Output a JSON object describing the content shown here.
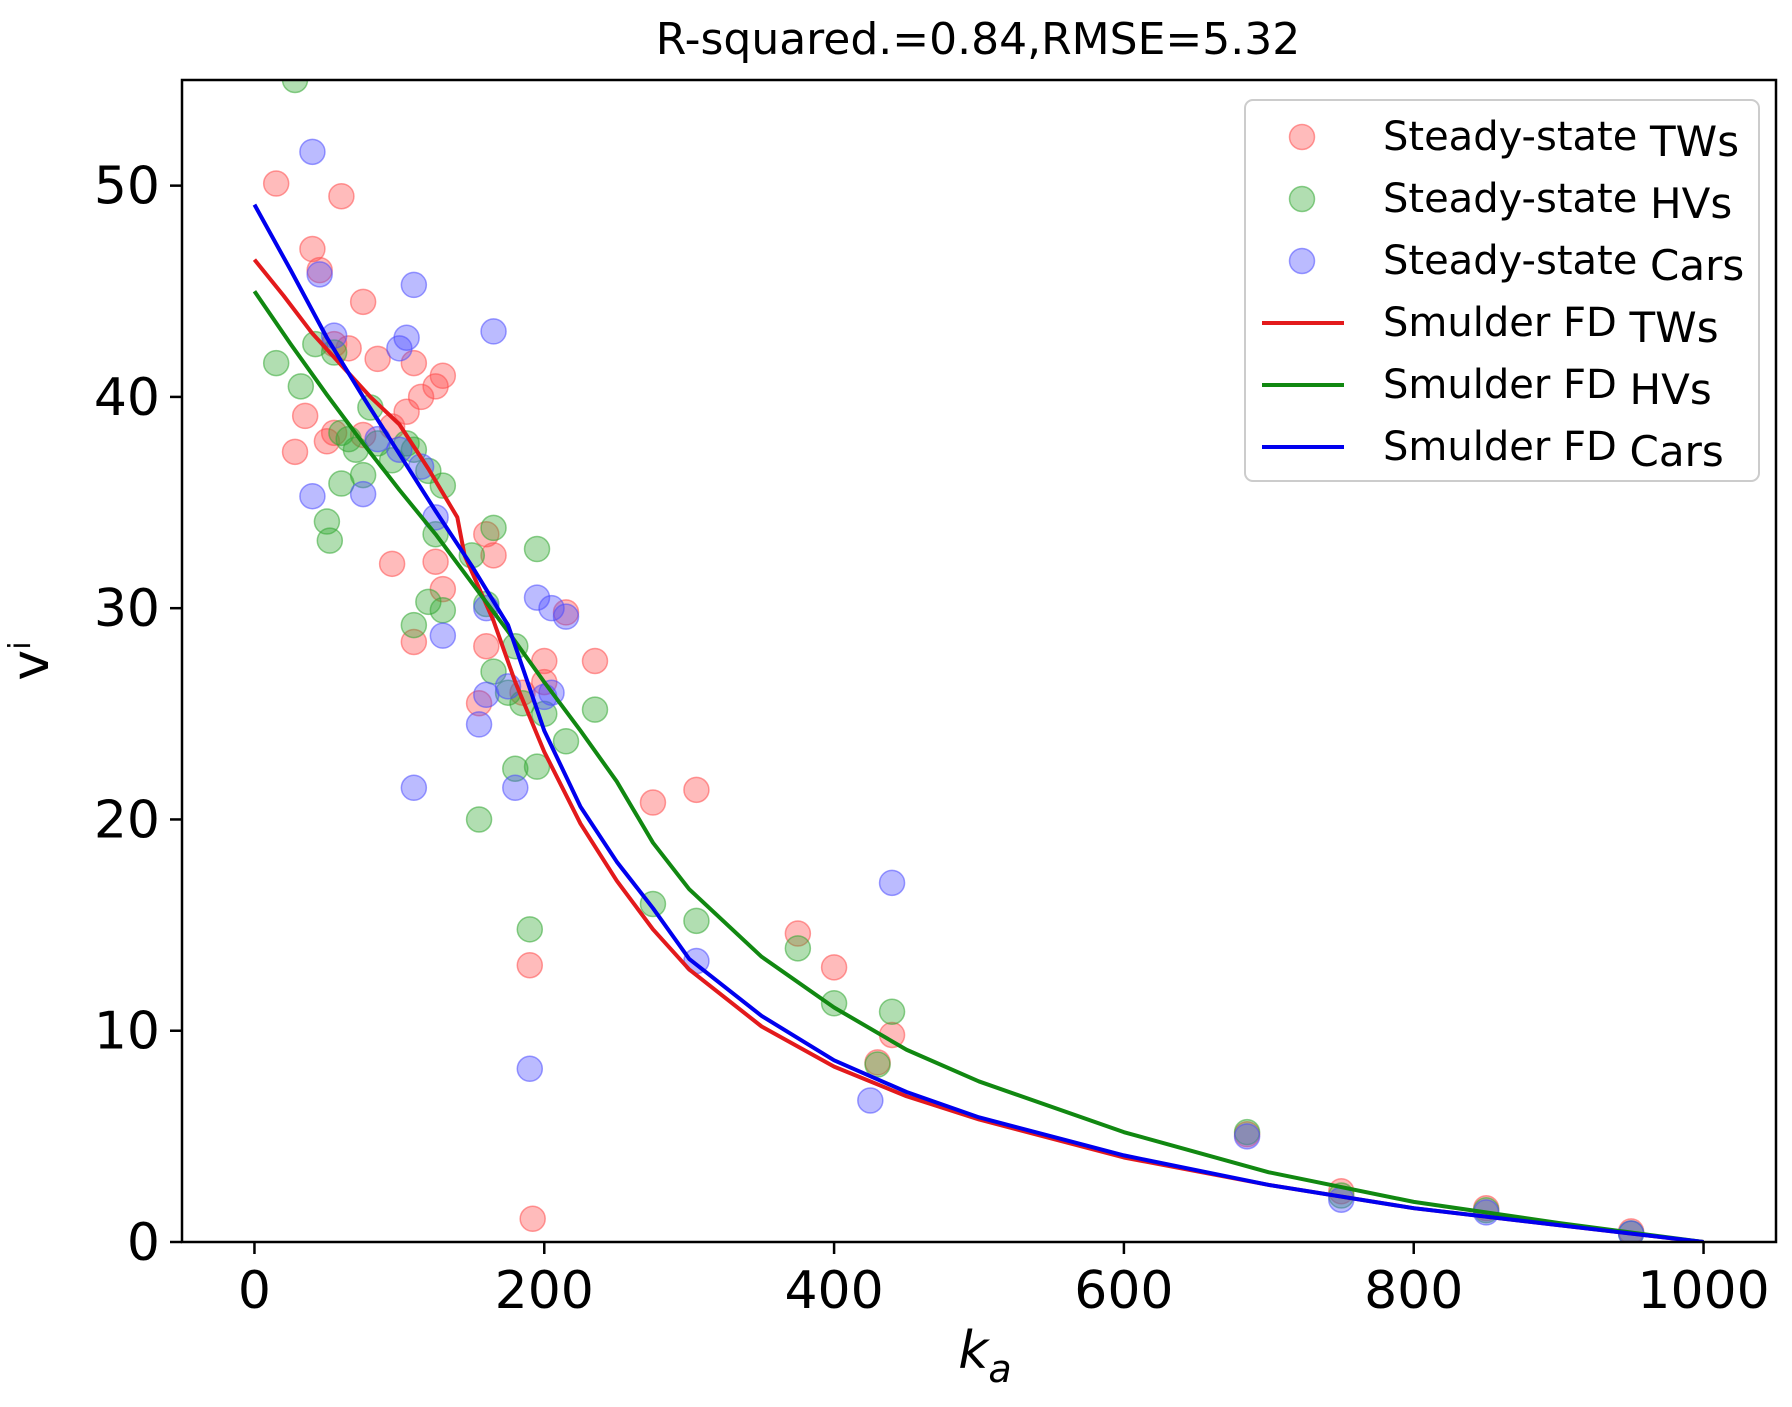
{
  "chart_data": {
    "type": "scatter",
    "title": "R-squared.=0.84,RMSE=5.32",
    "xlabel": "k",
    "xlabel_sub": "a",
    "ylabel": "v",
    "ylabel_sup": "i",
    "xlim": [
      -50,
      1050
    ],
    "ylim": [
      0,
      55
    ],
    "xticks": [
      0,
      200,
      400,
      600,
      800,
      1000
    ],
    "yticks": [
      0,
      10,
      20,
      30,
      40,
      50
    ],
    "legend_position": "upper-right",
    "scatter_series": [
      {
        "name": "Steady-state",
        "label_suffix": "TWs",
        "color": "#ff4d4d",
        "points": [
          [
            15,
            50.1
          ],
          [
            60,
            49.5
          ],
          [
            40,
            47
          ],
          [
            75,
            44.5
          ],
          [
            45,
            46
          ],
          [
            55,
            42.5
          ],
          [
            65,
            42.3
          ],
          [
            85,
            41.8
          ],
          [
            110,
            41.6
          ],
          [
            130,
            41
          ],
          [
            125,
            40.5
          ],
          [
            115,
            40
          ],
          [
            105,
            39.3
          ],
          [
            95,
            38.6
          ],
          [
            75,
            38.2
          ],
          [
            55,
            38.3
          ],
          [
            35,
            39.1
          ],
          [
            50,
            37.9
          ],
          [
            28,
            37.4
          ],
          [
            95,
            32.1
          ],
          [
            125,
            32.2
          ],
          [
            165,
            32.5
          ],
          [
            160,
            33.5
          ],
          [
            130,
            30.9
          ],
          [
            110,
            28.4
          ],
          [
            160,
            28.2
          ],
          [
            155,
            25.5
          ],
          [
            185,
            26
          ],
          [
            200,
            27.5
          ],
          [
            200,
            26.5
          ],
          [
            215,
            29.8
          ],
          [
            235,
            27.5
          ],
          [
            275,
            20.8
          ],
          [
            305,
            21.4
          ],
          [
            190,
            13.1
          ],
          [
            192,
            1.1
          ],
          [
            375,
            14.6
          ],
          [
            400,
            13
          ],
          [
            440,
            9.8
          ],
          [
            430,
            8.5
          ],
          [
            685,
            5.1
          ],
          [
            750,
            2.4
          ],
          [
            850,
            1.6
          ],
          [
            950,
            0.5
          ]
        ]
      },
      {
        "name": "Steady-state",
        "label_suffix": "HVs",
        "color": "#33a833",
        "points": [
          [
            28,
            55
          ],
          [
            15,
            41.6
          ],
          [
            32,
            40.5
          ],
          [
            42,
            42.5
          ],
          [
            55,
            42.1
          ],
          [
            60,
            38.3
          ],
          [
            65,
            38
          ],
          [
            70,
            37.5
          ],
          [
            75,
            36.3
          ],
          [
            60,
            35.9
          ],
          [
            50,
            34.1
          ],
          [
            52,
            33.2
          ],
          [
            80,
            39.5
          ],
          [
            85,
            37.8
          ],
          [
            95,
            37
          ],
          [
            105,
            37.8
          ],
          [
            110,
            37.5
          ],
          [
            120,
            36.5
          ],
          [
            130,
            35.8
          ],
          [
            125,
            33.5
          ],
          [
            150,
            32.5
          ],
          [
            165,
            33.8
          ],
          [
            160,
            30.2
          ],
          [
            120,
            30.3
          ],
          [
            130,
            29.9
          ],
          [
            110,
            29.2
          ],
          [
            180,
            28.2
          ],
          [
            195,
            32.8
          ],
          [
            165,
            27
          ],
          [
            175,
            26
          ],
          [
            185,
            25.5
          ],
          [
            200,
            25
          ],
          [
            215,
            23.7
          ],
          [
            235,
            25.2
          ],
          [
            155,
            20
          ],
          [
            180,
            22.4
          ],
          [
            195,
            22.5
          ],
          [
            190,
            14.8
          ],
          [
            275,
            16
          ],
          [
            305,
            15.2
          ],
          [
            375,
            13.9
          ],
          [
            400,
            11.3
          ],
          [
            440,
            10.9
          ],
          [
            430,
            8.4
          ],
          [
            685,
            5.2
          ],
          [
            750,
            2.2
          ],
          [
            850,
            1.5
          ],
          [
            950,
            0.4
          ]
        ]
      },
      {
        "name": "Steady-state",
        "label_suffix": "Cars",
        "color": "#4d4dff",
        "points": [
          [
            40,
            51.6
          ],
          [
            45,
            45.8
          ],
          [
            55,
            42.9
          ],
          [
            100,
            42.3
          ],
          [
            105,
            42.8
          ],
          [
            110,
            45.3
          ],
          [
            165,
            43.1
          ],
          [
            85,
            38
          ],
          [
            100,
            37.5
          ],
          [
            115,
            36.7
          ],
          [
            125,
            34.3
          ],
          [
            40,
            35.3
          ],
          [
            75,
            35.4
          ],
          [
            130,
            28.7
          ],
          [
            160,
            30
          ],
          [
            175,
            26.3
          ],
          [
            195,
            30.5
          ],
          [
            205,
            30
          ],
          [
            215,
            29.6
          ],
          [
            205,
            26
          ],
          [
            200,
            25.8
          ],
          [
            160,
            25.9
          ],
          [
            155,
            24.5
          ],
          [
            110,
            21.5
          ],
          [
            180,
            21.5
          ],
          [
            190,
            8.2
          ],
          [
            305,
            13.3
          ],
          [
            440,
            17
          ],
          [
            425,
            6.7
          ],
          [
            685,
            5
          ],
          [
            750,
            2
          ],
          [
            850,
            1.4
          ],
          [
            950,
            0.4
          ]
        ]
      }
    ],
    "line_series": [
      {
        "name": "Smulder FD",
        "label_suffix": "TWs",
        "color": "#e31a1c",
        "x": [
          0,
          20,
          40,
          60,
          80,
          100,
          120,
          140,
          145,
          165,
          180,
          200,
          225,
          250,
          275,
          300,
          350,
          400,
          450,
          500,
          600,
          700,
          800,
          900,
          1000
        ],
        "y": [
          46.5,
          44.8,
          43,
          41.5,
          40,
          38.7,
          36.6,
          34.3,
          32.5,
          29.4,
          26.5,
          23.2,
          19.8,
          17.1,
          14.8,
          12.9,
          10.2,
          8.3,
          6.9,
          5.8,
          4,
          2.7,
          1.6,
          0.8,
          0
        ]
      },
      {
        "name": "Smulder FD",
        "label_suffix": "HVs",
        "color": "#118811",
        "x": [
          0,
          25,
          50,
          75,
          100,
          125,
          150,
          175,
          200,
          225,
          250,
          275,
          300,
          350,
          400,
          450,
          500,
          600,
          700,
          800,
          900,
          1000
        ],
        "y": [
          45,
          42.5,
          40.1,
          37.8,
          35.6,
          33.5,
          31.2,
          28.9,
          26.5,
          24.2,
          21.8,
          18.9,
          16.7,
          13.5,
          11.1,
          9.1,
          7.6,
          5.2,
          3.3,
          1.9,
          0.9,
          0
        ]
      },
      {
        "name": "Smulder FD",
        "label_suffix": "Cars",
        "color": "#0000ee",
        "x": [
          0,
          25,
          50,
          75,
          100,
          125,
          150,
          175,
          200,
          225,
          250,
          275,
          300,
          350,
          400,
          450,
          500,
          600,
          700,
          800,
          900,
          1000
        ],
        "y": [
          49.1,
          46,
          42.8,
          40,
          37.3,
          34.6,
          32,
          29.2,
          24.2,
          20.6,
          18,
          15.8,
          13.4,
          10.7,
          8.6,
          7.1,
          5.9,
          4.1,
          2.7,
          1.6,
          0.8,
          0
        ]
      }
    ]
  }
}
